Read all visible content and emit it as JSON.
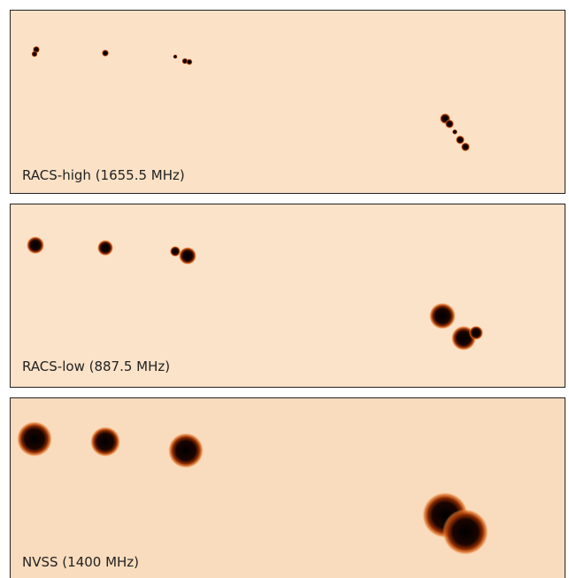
{
  "panels": [
    {
      "label": "RACS-high (1655.5 MHz)"
    },
    {
      "label": "RACS-low (887.5 MHz)"
    },
    {
      "label": "NVSS (1400 MHz)"
    }
  ]
}
